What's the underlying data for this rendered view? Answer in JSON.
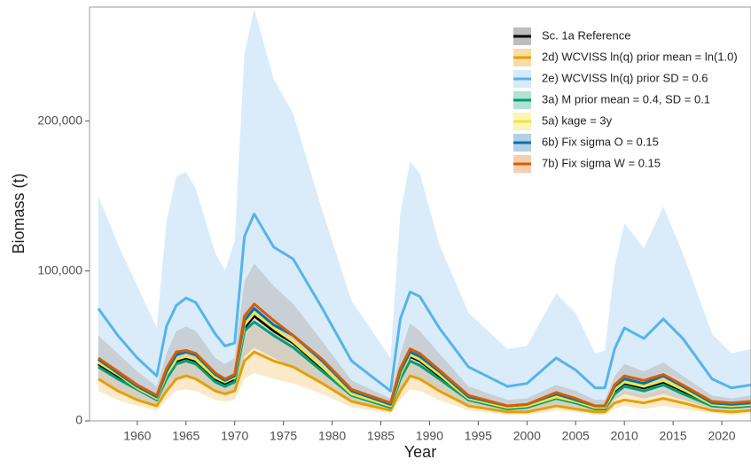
{
  "chart_data": {
    "type": "line",
    "x_label": "Year",
    "y_label": "Biomass (t)",
    "xlim": [
      1955.1,
      2023
    ],
    "ylim": [
      0,
      276000
    ],
    "xticks": [
      1960,
      1965,
      1970,
      1975,
      1980,
      1985,
      1990,
      1995,
      2000,
      2005,
      2010,
      2015,
      2020
    ],
    "yticks": [
      0,
      {
        "value": 100000,
        "label": "100,000"
      },
      {
        "value": 200000,
        "label": "200,000"
      }
    ],
    "x": [
      1956,
      1958,
      1960,
      1962,
      1963,
      1964,
      1965,
      1966,
      1968,
      1969,
      1970,
      1971,
      1972,
      1974,
      1976,
      1979,
      1982,
      1986,
      1987,
      1988,
      1989,
      1991,
      1994,
      1998,
      2000,
      2003,
      2005,
      2007,
      2008,
      2009,
      2010,
      2012,
      2014,
      2016,
      2019,
      2021,
      2023
    ],
    "series": [
      {
        "name": "Sc. 1a Reference",
        "color": "#000000",
        "fill": "#bdbdbd",
        "values": [
          38000,
          30000,
          22000,
          15000,
          30000,
          40000,
          42000,
          40000,
          28000,
          25000,
          28000,
          62000,
          70000,
          60000,
          52000,
          35000,
          18000,
          10000,
          30000,
          43000,
          40000,
          30000,
          15000,
          9000,
          10000,
          16000,
          13000,
          9000,
          9000,
          20000,
          25000,
          22000,
          26000,
          20000,
          11000,
          10000,
          11000
        ],
        "lower": [
          27000,
          21000,
          15000,
          11000,
          21000,
          28000,
          29000,
          28000,
          20000,
          18000,
          20000,
          43000,
          49000,
          42000,
          36000,
          25000,
          13000,
          7000,
          21000,
          30000,
          28000,
          21000,
          11000,
          6000,
          7000,
          11000,
          9000,
          6000,
          6000,
          14000,
          18000,
          15000,
          18000,
          14000,
          8000,
          7000,
          8000
        ],
        "upper": [
          57000,
          45000,
          33000,
          23000,
          45000,
          60000,
          63000,
          60000,
          42000,
          38000,
          42000,
          93000,
          105000,
          90000,
          78000,
          53000,
          27000,
          15000,
          45000,
          65000,
          60000,
          45000,
          23000,
          14000,
          15000,
          24000,
          20000,
          14000,
          14000,
          30000,
          38000,
          33000,
          39000,
          30000,
          17000,
          15000,
          17000
        ]
      },
      {
        "name": "2d) WCVISS ln(q) prior mean = ln(1.0)",
        "color": "#E69F00",
        "fill": "#f7dca6",
        "values": [
          28000,
          20000,
          14000,
          10000,
          20000,
          28000,
          30000,
          28000,
          20000,
          18000,
          20000,
          40000,
          46000,
          40000,
          36000,
          25000,
          13000,
          7000,
          20000,
          30000,
          28000,
          20000,
          10000,
          6000,
          6000,
          10000,
          8000,
          6000,
          6000,
          12000,
          14000,
          12000,
          15000,
          12000,
          7000,
          6000,
          7000
        ],
        "lower": [
          20000,
          14000,
          10000,
          7000,
          14000,
          20000,
          21000,
          20000,
          14000,
          13000,
          14000,
          28000,
          32000,
          28000,
          25000,
          18000,
          9000,
          5000,
          14000,
          21000,
          20000,
          14000,
          7000,
          4000,
          4000,
          7000,
          6000,
          4000,
          4000,
          8000,
          10000,
          8000,
          10000,
          8000,
          5000,
          4000,
          5000
        ],
        "upper": [
          38000,
          28000,
          20000,
          14000,
          28000,
          39000,
          42000,
          39000,
          28000,
          25000,
          28000,
          56000,
          64000,
          56000,
          50000,
          35000,
          18000,
          10000,
          28000,
          42000,
          39000,
          28000,
          14000,
          8000,
          8000,
          14000,
          11000,
          8000,
          8000,
          17000,
          20000,
          17000,
          21000,
          17000,
          10000,
          8000,
          10000
        ]
      },
      {
        "name": "2e) WCVISS ln(q) prior SD = 0.6",
        "color": "#56B4E9",
        "fill": "#d6eaf9",
        "values": [
          75000,
          57000,
          42000,
          30000,
          63000,
          77000,
          82000,
          79000,
          58000,
          50000,
          52000,
          123000,
          138000,
          116000,
          108000,
          75000,
          40000,
          20000,
          68000,
          86000,
          83000,
          62000,
          36000,
          23000,
          25000,
          42000,
          34000,
          22000,
          22000,
          48000,
          62000,
          55000,
          68000,
          55000,
          28000,
          22000,
          24000
        ],
        "lower": [
          38000,
          30000,
          22000,
          15000,
          32000,
          40000,
          42000,
          40000,
          29000,
          25000,
          27000,
          62000,
          70000,
          60000,
          55000,
          38000,
          20000,
          10000,
          35000,
          45000,
          42000,
          32000,
          18000,
          11000,
          12000,
          20000,
          17000,
          11000,
          11000,
          24000,
          30000,
          27000,
          33000,
          27000,
          14000,
          11000,
          12000
        ],
        "upper": [
          150000,
          118000,
          90000,
          62000,
          133000,
          163000,
          166000,
          155000,
          112000,
          100000,
          120000,
          245000,
          275000,
          228000,
          205000,
          140000,
          80000,
          42000,
          138000,
          173000,
          165000,
          118000,
          72000,
          48000,
          50000,
          85000,
          72000,
          45000,
          47000,
          103000,
          132000,
          115000,
          143000,
          112000,
          58000,
          45000,
          48000
        ]
      },
      {
        "name": "3a) M prior mean = 0.4, SD = 0.1",
        "color": "#009E73",
        "fill": "#b3e2d4",
        "values": [
          36000,
          28000,
          21000,
          14000,
          28000,
          38000,
          40000,
          38000,
          26000,
          23000,
          26000,
          60000,
          66000,
          57000,
          49000,
          33000,
          17000,
          9000,
          28000,
          40000,
          37000,
          28000,
          14000,
          8000,
          9000,
          15000,
          12000,
          8000,
          8000,
          18000,
          23000,
          20000,
          24000,
          18000,
          10000,
          9000,
          10000
        ]
      },
      {
        "name": "5a) kage = 3y",
        "color": "#F0E442",
        "fill": "#faf5b8",
        "values": [
          39000,
          31000,
          22000,
          15000,
          31000,
          41000,
          43000,
          41000,
          29000,
          26000,
          29000,
          64000,
          72000,
          62000,
          53000,
          36000,
          18000,
          10000,
          31000,
          44000,
          41000,
          31000,
          15000,
          9000,
          10000,
          16000,
          13000,
          9000,
          9000,
          21000,
          26000,
          23000,
          27000,
          21000,
          11000,
          10000,
          11000
        ]
      },
      {
        "name": "6b) Fix sigma O = 0.15",
        "color": "#0072B2",
        "fill": "#b3d0e4",
        "values": [
          41000,
          32000,
          23000,
          16000,
          33000,
          44000,
          46000,
          44000,
          31000,
          27000,
          30000,
          67000,
          75000,
          64000,
          57000,
          40000,
          20000,
          11000,
          33000,
          46000,
          43000,
          33000,
          16000,
          10000,
          11000,
          18000,
          14000,
          10000,
          10000,
          23000,
          28000,
          25000,
          30000,
          23000,
          12000,
          11000,
          12000
        ]
      },
      {
        "name": "7b) Fix sigma W = 0.15",
        "color": "#D55E00",
        "fill": "#f5cfb0",
        "values": [
          42000,
          33000,
          24000,
          17000,
          35000,
          46000,
          47000,
          45000,
          32000,
          28000,
          31000,
          70000,
          78000,
          67000,
          57000,
          41000,
          21000,
          12000,
          35000,
          48000,
          45000,
          34000,
          17000,
          10000,
          11000,
          19000,
          15000,
          10000,
          10000,
          24000,
          30000,
          27000,
          31000,
          24000,
          13000,
          12000,
          13000
        ]
      }
    ]
  }
}
